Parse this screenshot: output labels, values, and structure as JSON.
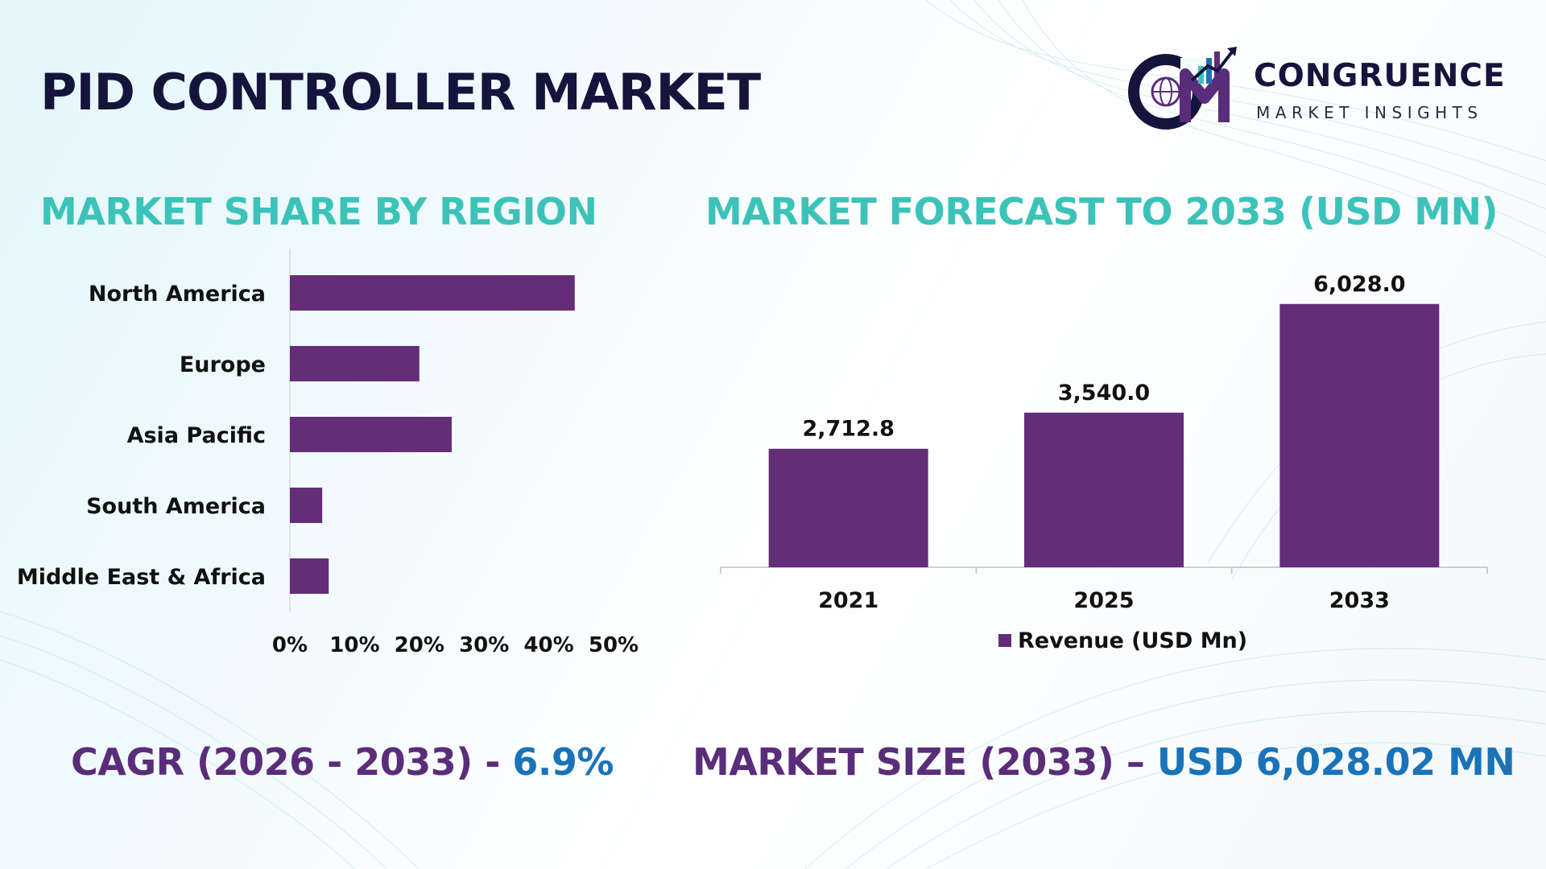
{
  "page": {
    "title": "PID CONTROLLER MARKET",
    "colors": {
      "bar": "#642d78",
      "section_title": "#3cc3b9",
      "footer_label": "#5a2d7a",
      "footer_value": "#1a73b8",
      "title": "#14143c"
    }
  },
  "logo": {
    "letters": "CM",
    "name": "CONGRUENCE",
    "tagline": "MARKET INSIGHTS",
    "icon": "globe-bars-arrow-icon"
  },
  "share": {
    "title": "MARKET SHARE BY REGION"
  },
  "forecast": {
    "title": "MARKET FORECAST TO 2033 (USD MN)"
  },
  "footer": {
    "cagr_label": "CAGR (2026 - 2033) - ",
    "cagr_value": "6.9%",
    "size_label": "MARKET SIZE (2033) – ",
    "size_value": "USD 6,028.02 MN"
  },
  "chart_data": [
    {
      "type": "bar",
      "orientation": "horizontal",
      "title": "MARKET SHARE BY REGION",
      "categories": [
        "North America",
        "Europe",
        "Asia Pacific",
        "South America",
        "Middle East & Africa"
      ],
      "values": [
        44,
        20,
        25,
        5,
        6
      ],
      "unit": "%",
      "xlim": [
        0,
        50
      ],
      "xticks": [
        "0%",
        "10%",
        "20%",
        "30%",
        "40%",
        "50%"
      ],
      "grid": false,
      "color": "#642d78"
    },
    {
      "type": "bar",
      "orientation": "vertical",
      "title": "MARKET FORECAST TO 2033 (USD MN)",
      "categories": [
        "2021",
        "2025",
        "2033"
      ],
      "series": [
        {
          "name": "Revenue (USD Mn)",
          "values": [
            2712.8,
            3540.0,
            6028.0
          ],
          "labels": [
            "2,712.8",
            "3,540.0",
            "6,028.0"
          ]
        }
      ],
      "ylim": [
        0,
        7000
      ],
      "grid": false,
      "legend": "bottom",
      "color": "#642d78"
    }
  ]
}
